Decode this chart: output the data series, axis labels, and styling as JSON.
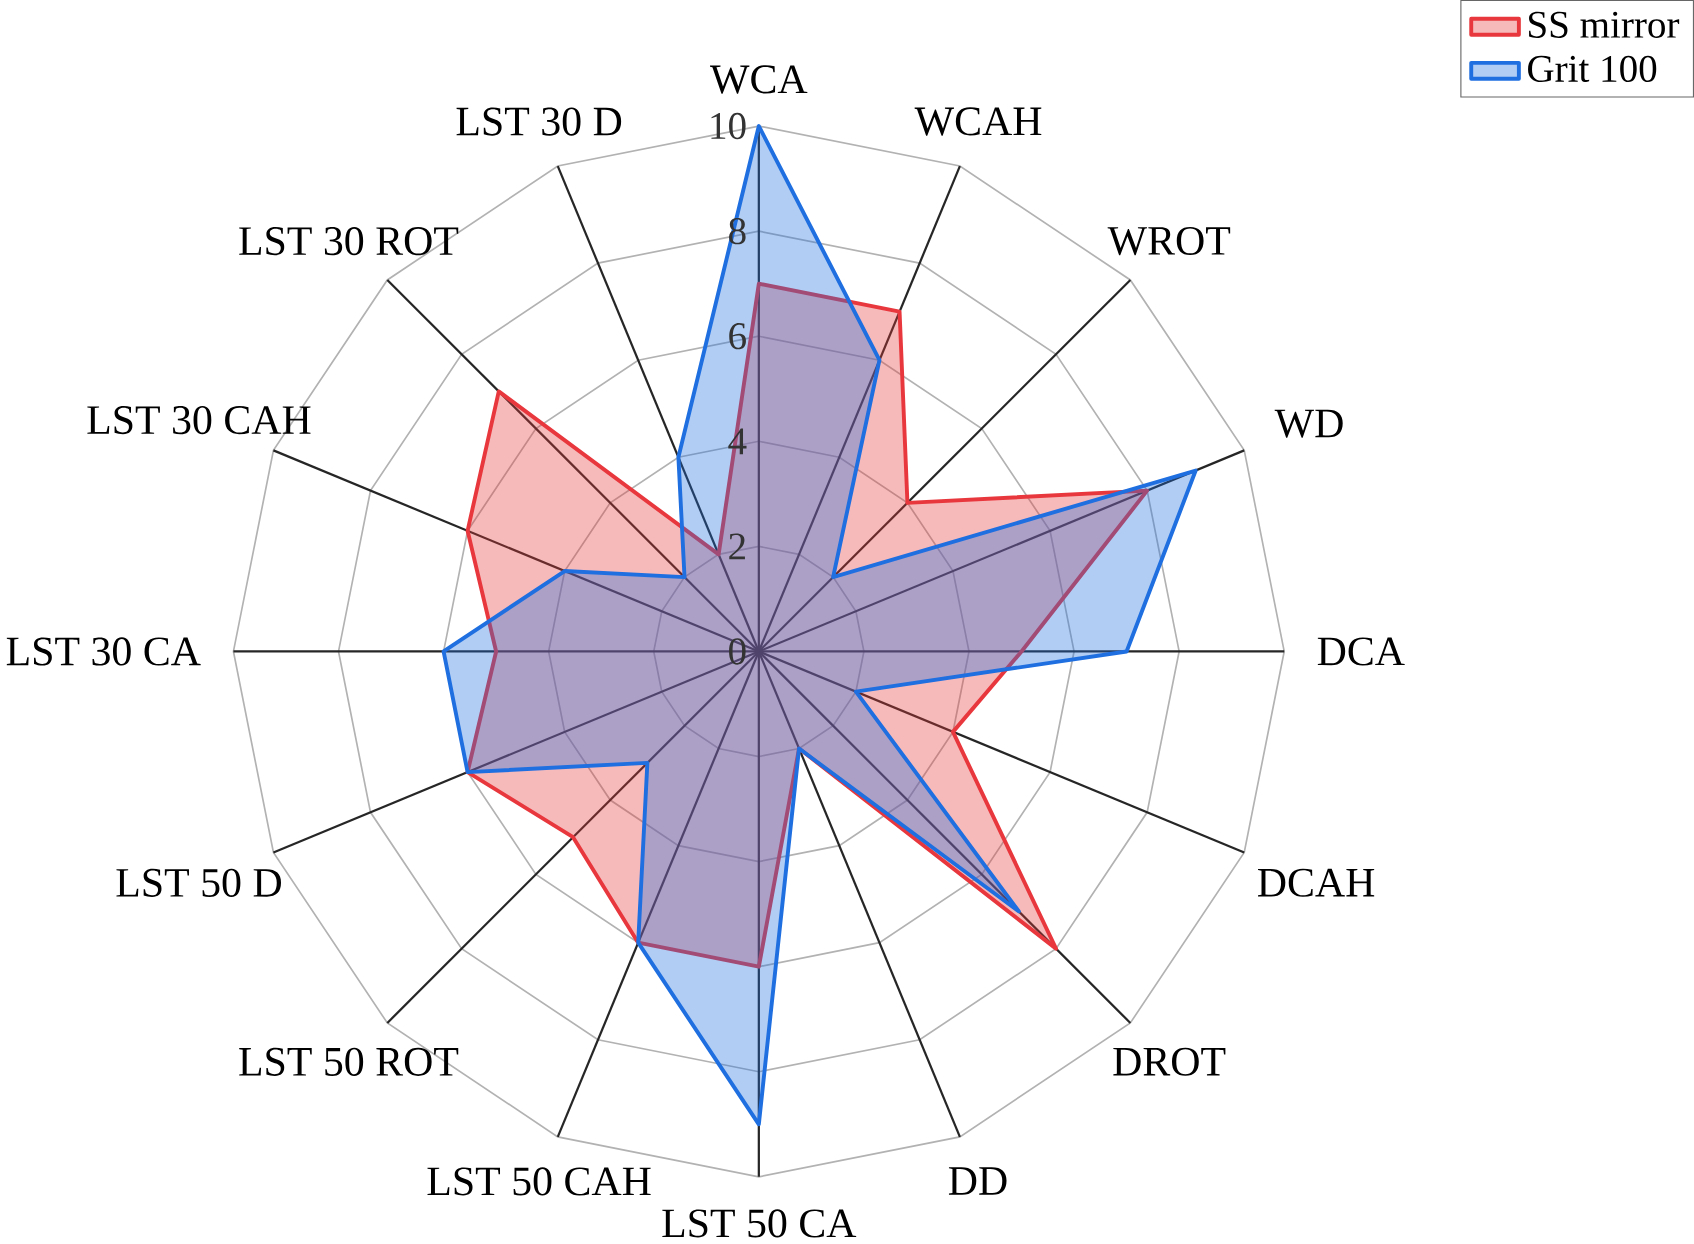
{
  "chart_data": {
    "type": "radar",
    "categories": [
      "WCA",
      "WCAH",
      "WROT",
      "WD",
      "DCA",
      "DCAH",
      "DROT",
      "DD",
      "LST 50 CA",
      "LST 50 CAH",
      "LST 50 ROT",
      "LST 50 D",
      "LST 30 CA",
      "LST 30 CAH",
      "LST 30 ROT",
      "LST 30 D"
    ],
    "series": [
      {
        "name": "SS mirror",
        "color": "#e8383d",
        "values": [
          7,
          7,
          4,
          8,
          5,
          4,
          8,
          2,
          6,
          6,
          5,
          6,
          5,
          6,
          7,
          2
        ]
      },
      {
        "name": "Grit 100",
        "color": "#1f6fe0",
        "values": [
          10,
          6,
          2,
          9,
          7,
          2,
          7,
          2,
          9,
          6,
          3,
          6,
          6,
          4,
          2,
          4
        ]
      }
    ],
    "ylim": [
      0,
      10
    ],
    "yticks": [
      0,
      2,
      4,
      6,
      8,
      10
    ],
    "grid": true,
    "legend": "top right"
  }
}
